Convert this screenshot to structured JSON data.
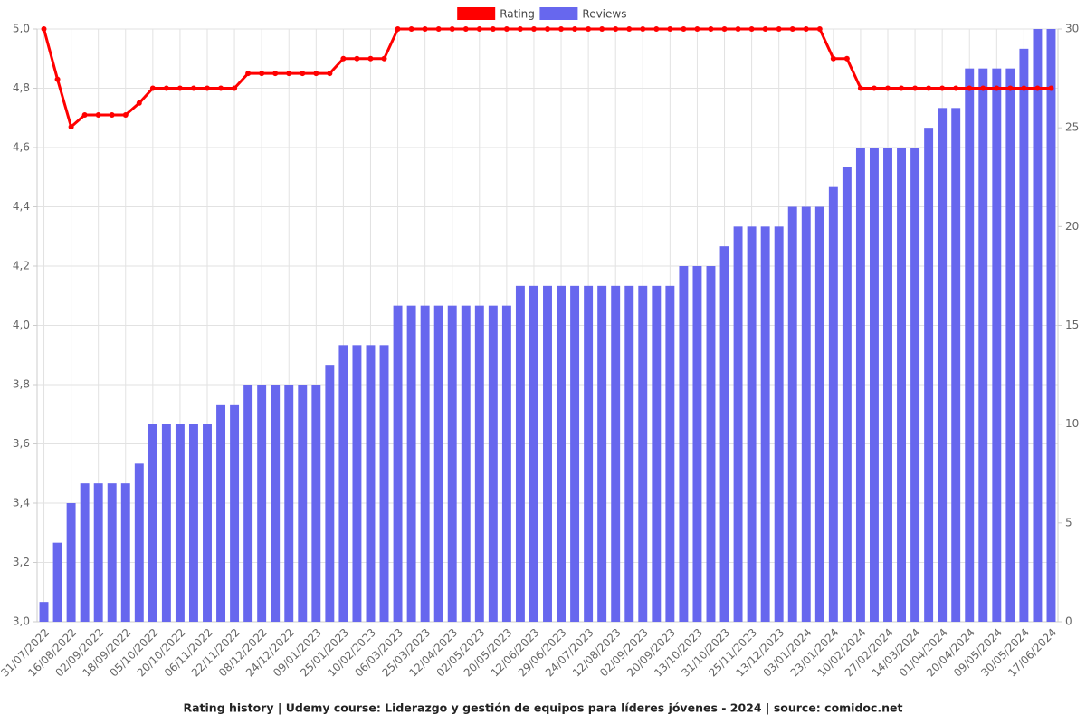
{
  "chart_data": {
    "type": "combo",
    "title": "Rating history | Udemy course: Liderazgo y gestión de equipos para líderes jóvenes - 2024 | source: comidoc.net",
    "categories": [
      "31/07/2022",
      null,
      "16/08/2022",
      null,
      "02/09/2022",
      null,
      "18/09/2022",
      null,
      "05/10/2022",
      null,
      "20/10/2022",
      null,
      "06/11/2022",
      null,
      "22/11/2022",
      null,
      "08/12/2022",
      null,
      "24/12/2022",
      null,
      "09/01/2023",
      null,
      "25/01/2023",
      null,
      "10/02/2023",
      null,
      "06/03/2023",
      null,
      "25/03/2023",
      null,
      "12/04/2023",
      null,
      "02/05/2023",
      null,
      "20/05/2023",
      null,
      "12/06/2023",
      null,
      "29/06/2023",
      null,
      "24/07/2023",
      null,
      "12/08/2023",
      null,
      "02/09/2023",
      null,
      "20/09/2023",
      null,
      "13/10/2023",
      null,
      "31/10/2023",
      null,
      "25/11/2023",
      null,
      "13/12/2023",
      null,
      "03/01/2024",
      null,
      "23/01/2024",
      null,
      "10/02/2024",
      null,
      "27/02/2024",
      null,
      "14/03/2024",
      null,
      "01/04/2024",
      null,
      "20/04/2024",
      null,
      "09/05/2024",
      null,
      "30/05/2024",
      null,
      "17/06/2024"
    ],
    "series": [
      {
        "name": "Rating",
        "type": "line",
        "axis": "y",
        "color": "#ff0000",
        "values": [
          5.0,
          4.83,
          4.67,
          4.71,
          4.71,
          4.71,
          4.71,
          4.75,
          4.8,
          4.8,
          4.8,
          4.8,
          4.8,
          4.8,
          4.8,
          4.85,
          4.85,
          4.85,
          4.85,
          4.85,
          4.85,
          4.85,
          4.9,
          4.9,
          4.9,
          4.9,
          5.0,
          5.0,
          5.0,
          5.0,
          5.0,
          5.0,
          5.0,
          5.0,
          5.0,
          5.0,
          5.0,
          5.0,
          5.0,
          5.0,
          5.0,
          5.0,
          5.0,
          5.0,
          5.0,
          5.0,
          5.0,
          5.0,
          5.0,
          5.0,
          5.0,
          5.0,
          5.0,
          5.0,
          5.0,
          5.0,
          5.0,
          5.0,
          4.9,
          4.9,
          4.8,
          4.8,
          4.8,
          4.8,
          4.8,
          4.8,
          4.8,
          4.8,
          4.8,
          4.8,
          4.8,
          4.8,
          4.8,
          4.8,
          4.8
        ]
      },
      {
        "name": "Reviews",
        "type": "bar",
        "axis": "y2",
        "color": "#6767ee",
        "values": [
          1,
          4,
          6,
          7,
          7,
          7,
          7,
          8,
          10,
          10,
          10,
          10,
          10,
          11,
          11,
          12,
          12,
          12,
          12,
          12,
          12,
          13,
          14,
          14,
          14,
          14,
          16,
          16,
          16,
          16,
          16,
          16,
          16,
          16,
          16,
          17,
          17,
          17,
          17,
          17,
          17,
          17,
          17,
          17,
          17,
          17,
          17,
          18,
          18,
          18,
          19,
          20,
          20,
          20,
          20,
          21,
          21,
          21,
          22,
          23,
          24,
          24,
          24,
          24,
          24,
          25,
          26,
          26,
          28,
          28,
          28,
          28,
          29,
          30,
          30
        ]
      }
    ],
    "ylim": [
      3,
      5
    ],
    "yticks": [
      {
        "value": 3,
        "label": "3,0"
      },
      {
        "value": 3.2,
        "label": "3,2"
      },
      {
        "value": 3.4,
        "label": "3,4"
      },
      {
        "value": 3.6,
        "label": "3,6"
      },
      {
        "value": 3.8,
        "label": "3,8"
      },
      {
        "value": 4,
        "label": "4,0"
      },
      {
        "value": 4.2,
        "label": "4,2"
      },
      {
        "value": 4.4,
        "label": "4,4"
      },
      {
        "value": 4.6,
        "label": "4,6"
      },
      {
        "value": 4.8,
        "label": "4,8"
      },
      {
        "value": 5,
        "label": "5,0"
      }
    ],
    "y2lim": [
      0,
      30
    ],
    "y2ticks": [
      0,
      5,
      10,
      15,
      20,
      25,
      30
    ],
    "grid": true,
    "legend": "top"
  }
}
